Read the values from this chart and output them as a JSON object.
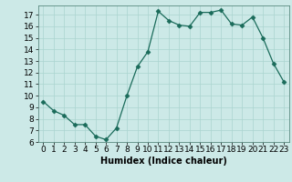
{
  "x": [
    0,
    1,
    2,
    3,
    4,
    5,
    6,
    7,
    8,
    9,
    10,
    11,
    12,
    13,
    14,
    15,
    16,
    17,
    18,
    19,
    20,
    21,
    22,
    23
  ],
  "y": [
    9.5,
    8.7,
    8.3,
    7.5,
    7.5,
    6.5,
    6.2,
    7.2,
    10.0,
    12.5,
    13.8,
    17.3,
    16.5,
    16.1,
    16.0,
    17.2,
    17.2,
    17.4,
    16.2,
    16.1,
    16.8,
    15.0,
    12.8,
    11.2
  ],
  "line_color": "#1a6b5a",
  "marker": "D",
  "markersize": 2.5,
  "bg_color": "#cce9e7",
  "grid_color": "#aad4d0",
  "xlabel": "Humidex (Indice chaleur)",
  "xlim": [
    -0.5,
    23.5
  ],
  "ylim": [
    6,
    17.8
  ],
  "yticks": [
    6,
    7,
    8,
    9,
    10,
    11,
    12,
    13,
    14,
    15,
    16,
    17
  ],
  "xticks": [
    0,
    1,
    2,
    3,
    4,
    5,
    6,
    7,
    8,
    9,
    10,
    11,
    12,
    13,
    14,
    15,
    16,
    17,
    18,
    19,
    20,
    21,
    22,
    23
  ],
  "label_fontsize": 7,
  "tick_fontsize": 6.5
}
